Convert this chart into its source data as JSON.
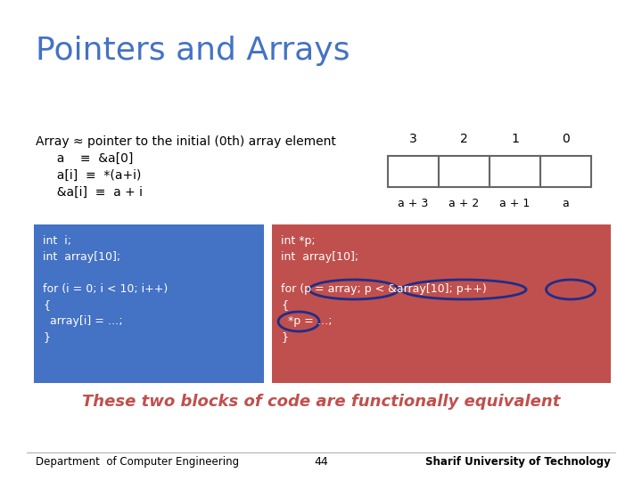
{
  "title": "Pointers and Arrays",
  "title_color": "#4472C4",
  "title_fontsize": 26,
  "bg_color": "#FFFFFF",
  "array_text_line0": "Array ≈ pointer to the initial (0th) array element",
  "array_text_line1": "  a    ≡  &a[0]",
  "array_text_line2": "  a[i]  ≡  *(a+i)",
  "array_text_line3": "  &a[i]  ≡  a + i",
  "array_box_labels_top": [
    "3",
    "2",
    "1",
    "0"
  ],
  "array_box_labels_bottom": [
    "a + 3",
    "a + 2",
    "a + 1",
    "a"
  ],
  "blue_box_color": "#4472C4",
  "red_box_color": "#C0504D",
  "blue_code_lines": [
    "int  i;",
    "int  array[10];",
    "",
    "for (i = 0; i < 10; i++)",
    "{",
    "  array[i] = …;",
    "}"
  ],
  "red_code_lines": [
    "int *p;",
    "int  array[10];",
    "",
    "for (p = array; p < &array[10]; p++)",
    "{",
    "  *p = …;",
    "}"
  ],
  "italic_text": "These two blocks of code are functionally equivalent",
  "italic_color": "#C0504D",
  "footer_left": "Department  of Computer Engineering",
  "footer_center": "44",
  "footer_right": "Sharif University of Technology",
  "footer_color": "#000000",
  "code_color": "#FFFFFF",
  "ellipse_color": "#1F2D8A",
  "box_bg": "#FFFFFF",
  "box_edge": "#666666"
}
